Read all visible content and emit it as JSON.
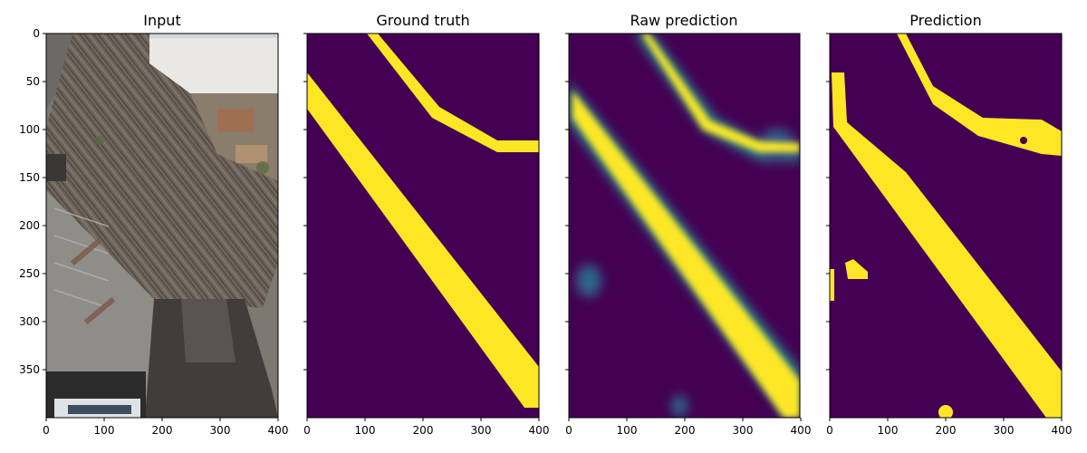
{
  "colors": {
    "background": "#440154",
    "foreground": "#fde725",
    "mid_teal": "#21918c",
    "axis": "#000000"
  },
  "panels": [
    {
      "id": "input",
      "title": "Input",
      "kind": "aerial-photo",
      "show_y_tick_labels": true
    },
    {
      "id": "ground-truth",
      "title": "Ground truth",
      "kind": "mask",
      "show_y_tick_labels": false
    },
    {
      "id": "raw-prediction",
      "title": "Raw prediction",
      "kind": "heatmap",
      "show_y_tick_labels": false
    },
    {
      "id": "prediction",
      "title": "Prediction",
      "kind": "mask",
      "show_y_tick_labels": false
    }
  ],
  "axes": {
    "x_ticks": [
      "0",
      "100",
      "200",
      "300",
      "400"
    ],
    "y_ticks": [
      "0",
      "50",
      "100",
      "150",
      "200",
      "250",
      "300",
      "350"
    ],
    "x_range": [
      0,
      400
    ],
    "y_range": [
      0,
      400
    ]
  }
}
